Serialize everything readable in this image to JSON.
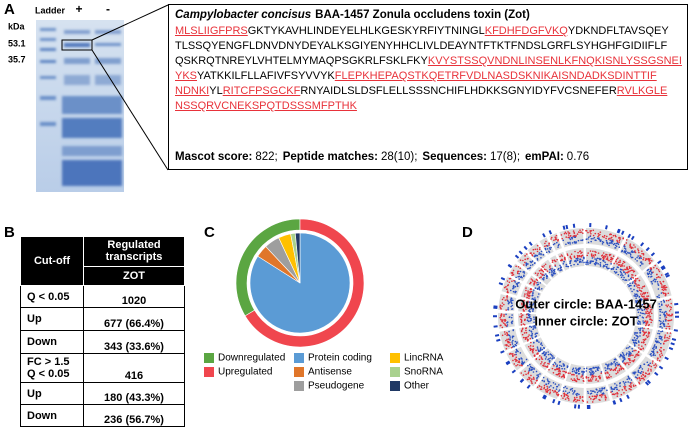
{
  "panel_a": {
    "label": "A",
    "gel": {
      "unit": "kDa",
      "markers": [
        "53.1",
        "35.7"
      ],
      "lanes": [
        "Ladder",
        "+",
        "-"
      ]
    },
    "protein": {
      "organism": "Campylobacter concisus",
      "title": "BAA-1457 Zonula occludens toxin (Zot)",
      "sequence": [
        [
          {
            "text": "MLSLIIGFPRS",
            "matched": true
          },
          {
            "text": "GKTYKAVHLINDEYELHLKGESKYRFIYTNINGL",
            "matched": false
          },
          {
            "text": "KFDHFDGFVKQ",
            "matched": true
          },
          {
            "text": "YDKNDFLTAVSQEY",
            "matched": false
          }
        ],
        [
          {
            "text": "TLSSQYENGFLDNVDNYDEYALKSGIYENYHHCLIVLDEAYNTFTKTFNDSLGRFLSYHGHFGIDIIFLF",
            "matched": false
          }
        ],
        [
          {
            "text": "QSKRQTNREYLVHTELMYMAQPSGKRLFSKLFKY",
            "matched": false
          },
          {
            "text": "KVYSTSSQVNDNLINSENLKFNQKISNLYSSGSNEI",
            "matched": true
          }
        ],
        [
          {
            "text": "YKS",
            "matched": true
          },
          {
            "text": "YATKKILFLLAFIVFSYVVYK",
            "matched": false
          },
          {
            "text": "FLEPKHEPAQSTKQETRFVDLNASDSKNIKAISNDADKSDINTTIF",
            "matched": true
          }
        ],
        [
          {
            "text": "NDNKI",
            "matched": true
          },
          {
            "text": "YL",
            "matched": false
          },
          {
            "text": "RITCFPSGCKF",
            "matched": true
          },
          {
            "text": "RNYAIDLSLDSFLELLSSSNCHIFLHDKKSGNYIDYFVCSNEFER",
            "matched": false
          },
          {
            "text": "RVLKGLE",
            "matched": true
          }
        ],
        [
          {
            "text": "NSSQRVCNEKSPQTDSSSMFPTHK",
            "matched": true
          }
        ]
      ],
      "stats": [
        {
          "label": "Mascot score:",
          "value": "822;"
        },
        {
          "label": "Peptide matches:",
          "value": "28(10);"
        },
        {
          "label": "Sequences:",
          "value": "17(8);"
        },
        {
          "label": "emPAI:",
          "value": "0.76"
        }
      ]
    }
  },
  "panel_b": {
    "label": "B",
    "table": {
      "header": {
        "cutoff": "Cut-off",
        "group": "Regulated transcripts",
        "column": "ZOT"
      },
      "rows": [
        {
          "cutoff": [
            "Q < 0.05"
          ],
          "value": "1020"
        },
        {
          "cutoff": [
            "Up"
          ],
          "value": "677 (66.4%)"
        },
        {
          "cutoff": [
            "Down"
          ],
          "value": "343 (33.6%)"
        },
        {
          "cutoff": [
            "FC > 1.5",
            "Q < 0.05"
          ],
          "value": "416"
        },
        {
          "cutoff": [
            "Up"
          ],
          "value": "180 (43.3%)"
        },
        {
          "cutoff": [
            "Down"
          ],
          "value": "236 (56.7%)"
        }
      ]
    }
  },
  "panel_c": {
    "label": "C",
    "type": "pie",
    "outer": [
      {
        "name": "Downregulated",
        "color": "#5ba642",
        "value": 33.6
      },
      {
        "name": "Upregulated",
        "color": "#f0464e",
        "value": 66.4
      }
    ],
    "inner": [
      {
        "name": "Protein coding",
        "color": "#5b9bd5",
        "value": 84
      },
      {
        "name": "Antisense",
        "color": "#e0762a",
        "value": 4
      },
      {
        "name": "Pseudogene",
        "color": "#9e9e9e",
        "value": 5
      },
      {
        "name": "LincRNA",
        "color": "#ffc000",
        "value": 4
      },
      {
        "name": "SnoRNA",
        "color": "#a9d18e",
        "value": 1.5
      },
      {
        "name": "Other",
        "color": "#1f3864",
        "value": 1.5
      }
    ]
  },
  "panel_d": {
    "label": "D",
    "annotations": [
      "Outer circle: BAA-1457",
      "Inner circle: ZOT"
    ]
  }
}
